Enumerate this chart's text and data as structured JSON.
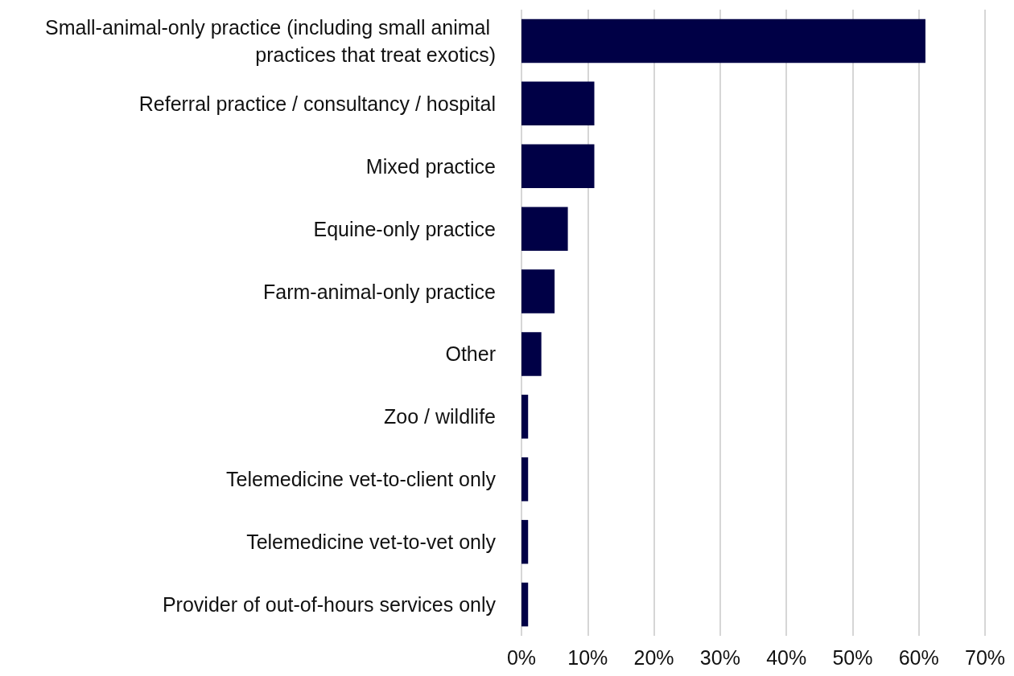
{
  "chart_data": {
    "type": "bar",
    "orientation": "horizontal",
    "categories": [
      "Small-animal-only practice (including small animal practices that treat exotics)",
      "Referral practice / consultancy / hospital",
      "Mixed practice",
      "Equine-only practice",
      "Farm-animal-only practice",
      "Other",
      "Zoo / wildlife",
      "Telemedicine vet-to-client only",
      "Telemedicine vet-to-vet only",
      "Provider of out-of-hours services only"
    ],
    "values": [
      61,
      11,
      11,
      7,
      5,
      3,
      1,
      1,
      1,
      1
    ],
    "color": "#000046",
    "xlim": [
      0,
      70
    ],
    "xticks": [
      {
        "value": 0,
        "label": "0%"
      },
      {
        "value": 10,
        "label": "10%"
      },
      {
        "value": 20,
        "label": "20%"
      },
      {
        "value": 30,
        "label": "30%"
      },
      {
        "value": 40,
        "label": "40%"
      },
      {
        "value": 50,
        "label": "50%"
      },
      {
        "value": 60,
        "label": "60%"
      },
      {
        "value": 70,
        "label": "70%"
      }
    ],
    "grid": "x"
  }
}
